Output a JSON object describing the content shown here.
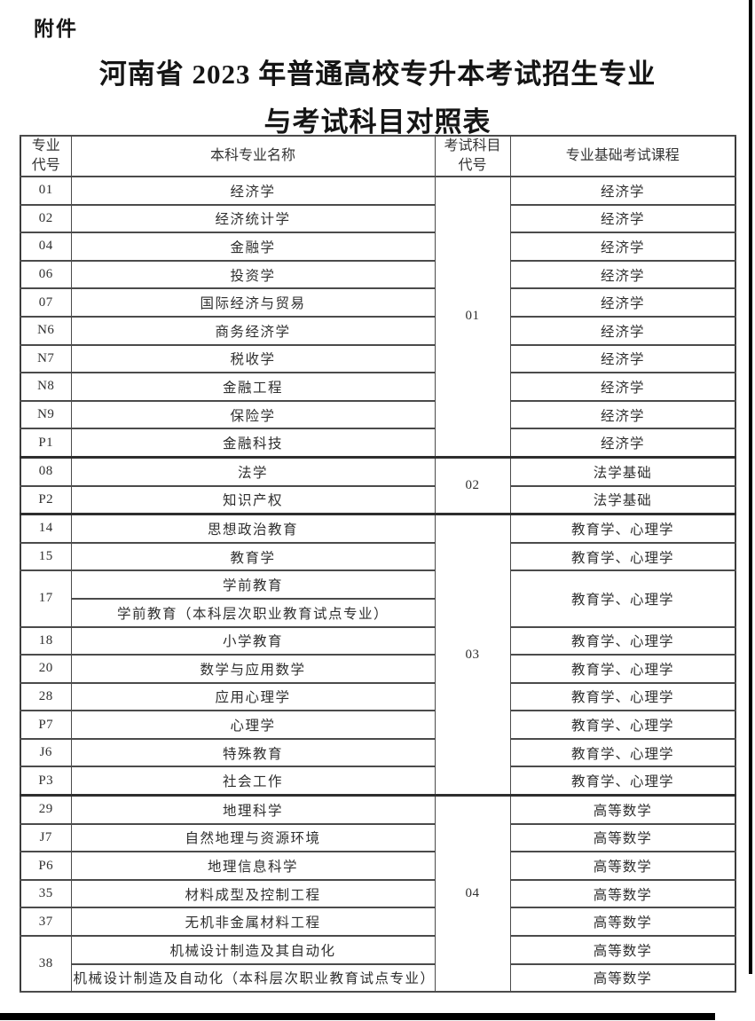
{
  "page": {
    "attachment_label": "附件",
    "title_line1": "河南省 2023 年普通高校专升本考试招生专业",
    "title_line2": "与考试科目对照表"
  },
  "colors": {
    "table_border": "#4b4b4b",
    "page_frame": "#000000",
    "body_text": "#2f2f2f"
  },
  "table": {
    "headers": [
      "专业\n代号",
      "本科专业名称",
      "考试科目\n代号",
      "专业基础考试课程"
    ],
    "rows": [
      {
        "code": "01",
        "major": "经济学",
        "exam": "01",
        "exam_span": 10,
        "course": "经济学"
      },
      {
        "code": "02",
        "major": "经济统计学",
        "course": "经济学"
      },
      {
        "code": "04",
        "major": "金融学",
        "course": "经济学"
      },
      {
        "code": "06",
        "major": "投资学",
        "course": "经济学"
      },
      {
        "code": "07",
        "major": "国际经济与贸易",
        "course": "经济学"
      },
      {
        "code": "N6",
        "major": "商务经济学",
        "course": "经济学"
      },
      {
        "code": "N7",
        "major": "税收学",
        "course": "经济学"
      },
      {
        "code": "N8",
        "major": "金融工程",
        "course": "经济学"
      },
      {
        "code": "N9",
        "major": "保险学",
        "course": "经济学"
      },
      {
        "code": "P1",
        "major": "金融科技",
        "course": "经济学"
      },
      {
        "code": "08",
        "major": "法学",
        "exam": "02",
        "exam_span": 2,
        "course": "法学基础",
        "group_start": true
      },
      {
        "code": "P2",
        "major": "知识产权",
        "course": "法学基础"
      },
      {
        "code": "14",
        "major": "思想政治教育",
        "exam": "03",
        "exam_span": 10,
        "course": "教育学、心理学",
        "group_start": true
      },
      {
        "code": "15",
        "major": "教育学",
        "course": "教育学、心理学"
      },
      {
        "code": "17",
        "code_span": 2,
        "major": "学前教育",
        "course": "教育学、心理学",
        "course_span": 2
      },
      {
        "major": "学前教育（本科层次职业教育试点专业）"
      },
      {
        "code": "18",
        "major": "小学教育",
        "course": "教育学、心理学"
      },
      {
        "code": "20",
        "major": "数学与应用数学",
        "course": "教育学、心理学"
      },
      {
        "code": "28",
        "major": "应用心理学",
        "course": "教育学、心理学"
      },
      {
        "code": "P7",
        "major": "心理学",
        "course": "教育学、心理学"
      },
      {
        "code": "J6",
        "major": "特殊教育",
        "course": "教育学、心理学"
      },
      {
        "code": "P3",
        "major": "社会工作",
        "course": "教育学、心理学"
      },
      {
        "code": "29",
        "major": "地理科学",
        "exam": "04",
        "exam_span": 7,
        "course": "高等数学",
        "group_start": true
      },
      {
        "code": "J7",
        "major": "自然地理与资源环境",
        "course": "高等数学"
      },
      {
        "code": "P6",
        "major": "地理信息科学",
        "course": "高等数学"
      },
      {
        "code": "35",
        "major": "材料成型及控制工程",
        "course": "高等数学"
      },
      {
        "code": "37",
        "major": "无机非金属材料工程",
        "course": "高等数学"
      },
      {
        "code": "38",
        "code_span": 2,
        "major": "机械设计制造及其自动化",
        "course": "高等数学"
      },
      {
        "major": "机械设计制造及自动化（本科层次职业教育试点专业）",
        "course": "高等数学"
      }
    ]
  }
}
